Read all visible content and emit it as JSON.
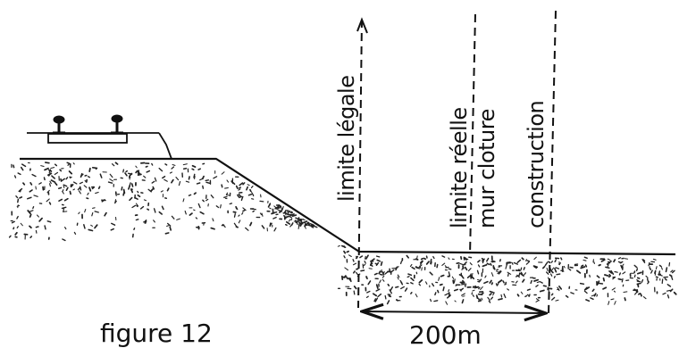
{
  "labels": {
    "limite_legale": "limite légale",
    "limite_reelle": "limite réelle",
    "mur_cloture": "mur cloture",
    "construction": "construction",
    "figure": "figure 12",
    "distance": "200m"
  },
  "colors": {
    "ink": "#111111",
    "background": "#ffffff"
  }
}
